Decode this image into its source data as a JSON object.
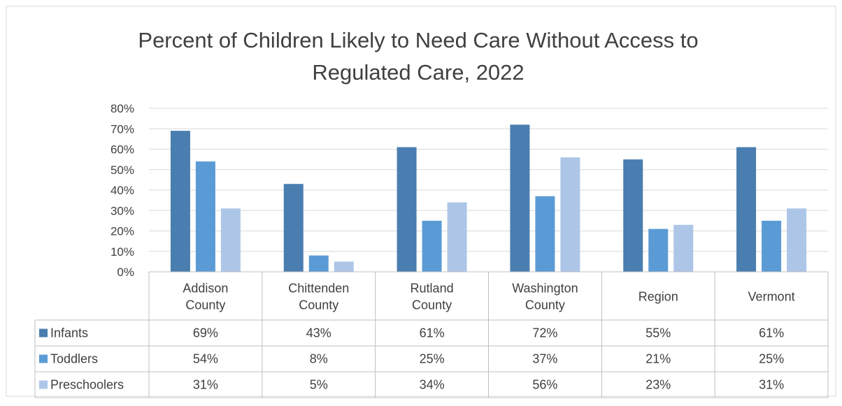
{
  "chart_data": {
    "type": "bar",
    "title_line1": "Percent of Children Likely to Need Care Without Access to",
    "title_line2": "Regulated Care, 2022",
    "categories": [
      [
        "Addison",
        "County"
      ],
      [
        "Chittenden",
        "County"
      ],
      [
        "Rutland",
        "County"
      ],
      [
        "Washington",
        "County"
      ],
      [
        "Region"
      ],
      [
        "Vermont"
      ]
    ],
    "series": [
      {
        "name": "Infants",
        "values": [
          69,
          43,
          61,
          72,
          55,
          61
        ],
        "labels": [
          "69%",
          "43%",
          "61%",
          "72%",
          "55%",
          "61%"
        ],
        "color": "#4a7eb0"
      },
      {
        "name": "Toddlers",
        "values": [
          54,
          8,
          25,
          37,
          21,
          25
        ],
        "labels": [
          "54%",
          "8%",
          "25%",
          "37%",
          "21%",
          "25%"
        ],
        "color": "#5b9bd5"
      },
      {
        "name": "Preschoolers",
        "values": [
          31,
          5,
          34,
          56,
          23,
          31
        ],
        "labels": [
          "31%",
          "5%",
          "34%",
          "56%",
          "23%",
          "31%"
        ],
        "color": "#adc6e8"
      }
    ],
    "yticks": [
      "0%",
      "10%",
      "20%",
      "30%",
      "40%",
      "50%",
      "60%",
      "70%",
      "80%"
    ],
    "ylim": [
      0,
      80
    ],
    "grid": true,
    "legend": "data-table"
  }
}
